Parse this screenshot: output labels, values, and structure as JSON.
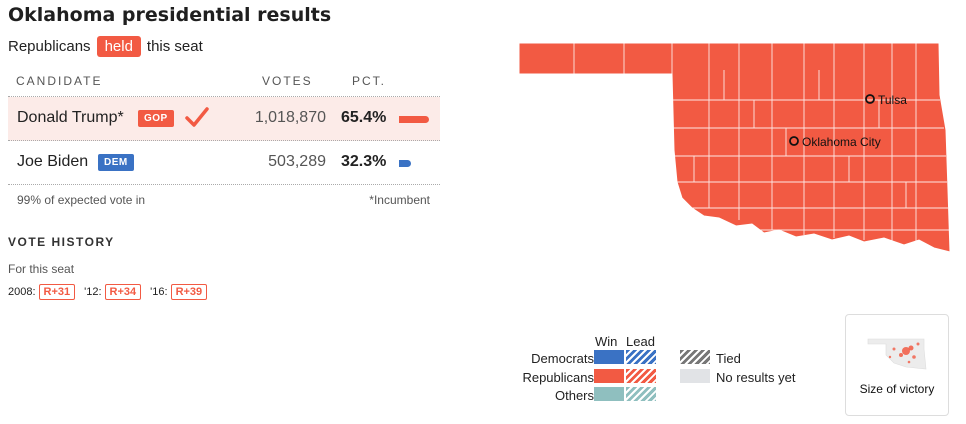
{
  "title": "Oklahoma presidential results",
  "subtitle": {
    "before": "Republicans",
    "badge": "held",
    "after": "this seat"
  },
  "table": {
    "headers": {
      "candidate": "CANDIDATE",
      "votes": "VOTES",
      "pct": "PCT."
    },
    "rows": [
      {
        "name": "Donald Trump*",
        "party": "GOP",
        "votes": "1,018,870",
        "pct": "65.4%",
        "pct_value": 65.4,
        "winner": true
      },
      {
        "name": "Joe Biden",
        "party": "DEM",
        "votes": "503,289",
        "pct": "32.3%",
        "pct_value": 32.3,
        "winner": false
      }
    ],
    "footer": {
      "left": "99% of expected vote in",
      "right": "*Incumbent"
    }
  },
  "vote_history": {
    "title": "VOTE HISTORY",
    "subtitle": "For this seat",
    "items": [
      {
        "year": "2008:",
        "margin": "R+31"
      },
      {
        "year": "'12:",
        "margin": "R+34"
      },
      {
        "year": "'16:",
        "margin": "R+39"
      }
    ]
  },
  "map": {
    "fill_color": "#f25a43",
    "cities": [
      {
        "name": "Tulsa"
      },
      {
        "name": "Oklahoma City"
      }
    ]
  },
  "legend": {
    "win": "Win",
    "lead": "Lead",
    "parties": [
      {
        "name": "Democrats",
        "color": "#3a72c4"
      },
      {
        "name": "Republicans",
        "color": "#f25a43"
      },
      {
        "name": "Others",
        "color": "#8fbfbf"
      }
    ],
    "tied": "Tied",
    "no_results": "No results yet",
    "tied_color": "#777777",
    "no_results_color": "#e1e3e6"
  },
  "size_of_victory": {
    "label": "Size of victory"
  },
  "colors": {
    "republican": "#f25a43",
    "democrat": "#3a72c4"
  }
}
